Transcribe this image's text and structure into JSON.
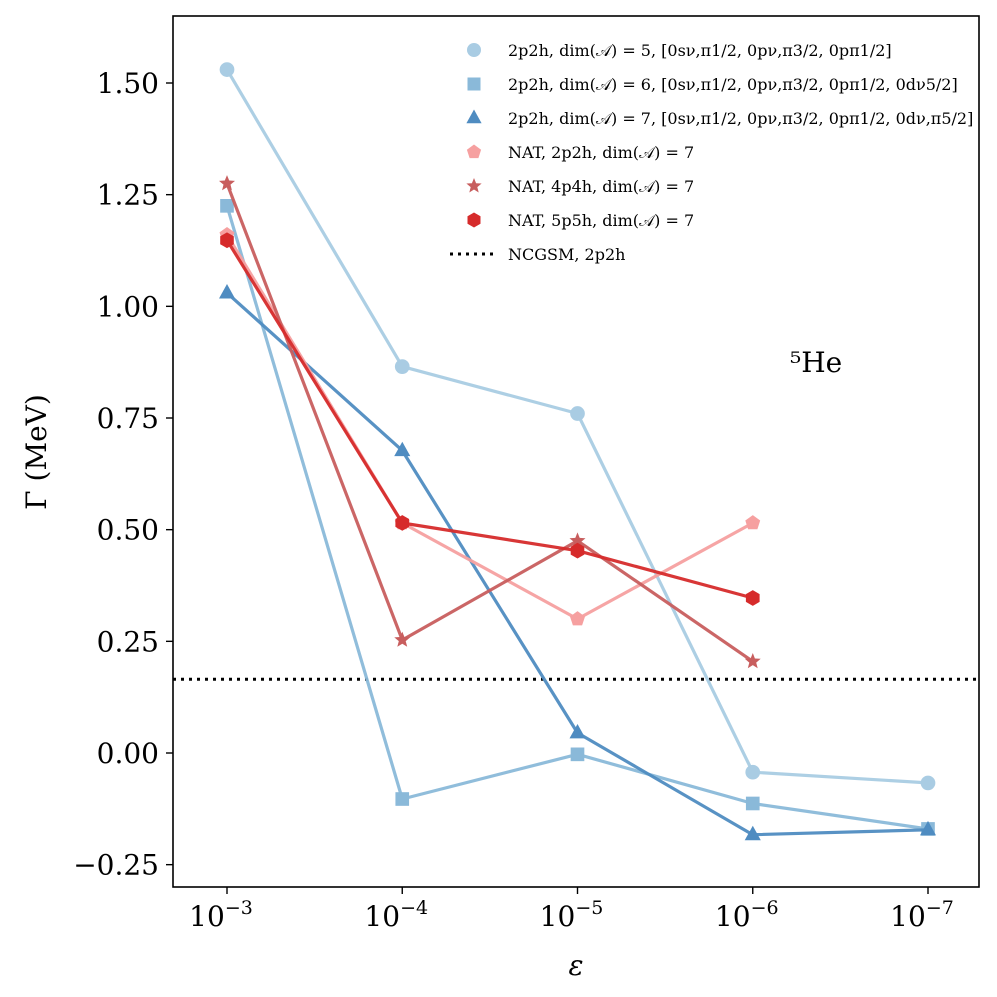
{
  "chart_data": {
    "type": "line",
    "xlabel": "ε",
    "ylabel": "Γ (MeV)",
    "x_scale": "log",
    "x_ticks": [
      {
        "base": "10",
        "exp": "−3",
        "value": 0.001
      },
      {
        "base": "10",
        "exp": "−4",
        "value": 0.0001
      },
      {
        "base": "10",
        "exp": "−5",
        "value": 1e-05
      },
      {
        "base": "10",
        "exp": "−6",
        "value": 1e-06
      },
      {
        "base": "10",
        "exp": "−7",
        "value": 1e-07
      }
    ],
    "y_ticks": [
      "−0.25",
      "0.00",
      "0.25",
      "0.50",
      "0.75",
      "1.00",
      "1.25",
      "1.50"
    ],
    "y_tick_values": [
      -0.25,
      0.0,
      0.25,
      0.5,
      0.75,
      1.0,
      1.25,
      1.5
    ],
    "ylim": [
      -0.3,
      1.65
    ],
    "legend_position": "upper-right",
    "annotation": "⁵He",
    "hline": {
      "name": "NCGSM, 2p2h",
      "y": 0.165,
      "style": "dotted",
      "color": "#000000"
    },
    "series": [
      {
        "name": "2p2h, dim(𝒜) = 5, [0s^{ν,π}_{1/2}, 0p^{ν,π}_{3/2}, 0p^{π}_{1/2}]",
        "legend_label": "2p2h, dim(𝒜) = 5, [0sν,π1/2, 0pν,π3/2, 0pπ1/2]",
        "marker": "circle",
        "color": "#a9cce3",
        "x": [
          0.001,
          0.0001,
          1e-05,
          1e-06,
          1e-07
        ],
        "values": [
          1.53,
          0.865,
          0.76,
          -0.043,
          -0.067
        ]
      },
      {
        "name": "2p2h, dim(𝒜) = 6, [0s^{ν,π}_{1/2}, 0p^{ν,π}_{3/2}, 0p^{π}_{1/2}, 0d^{ν}_{5/2}]",
        "legend_label": "2p2h, dim(𝒜) = 6, [0sν,π1/2, 0pν,π3/2, 0pπ1/2, 0dν5/2]",
        "marker": "square",
        "color": "#8ab9d9",
        "x": [
          0.001,
          0.0001,
          1e-05,
          1e-06,
          1e-07
        ],
        "values": [
          1.225,
          -0.103,
          -0.003,
          -0.113,
          -0.17
        ]
      },
      {
        "name": "2p2h, dim(𝒜) = 7, [0s^{ν,π}_{1/2}, 0p^{ν,π}_{3/2}, 0p^{π}_{1/2}, 0d^{ν,π}_{5/2}]",
        "legend_label": "2p2h, dim(𝒜) = 7, [0sν,π1/2, 0pν,π3/2, 0pπ1/2, 0dν,π5/2]",
        "marker": "triangle",
        "color": "#4f8cc1",
        "x": [
          0.001,
          0.0001,
          1e-05,
          1e-06,
          1e-07
        ],
        "values": [
          1.03,
          0.677,
          0.045,
          -0.183,
          -0.172
        ]
      },
      {
        "name": "NAT, 2p2h, dim(𝒜) = 7",
        "legend_label": "NAT, 2p2h, dim(𝒜) = 7",
        "marker": "pentagon",
        "color": "#f6a0a0",
        "x": [
          0.001,
          0.0001,
          1e-05,
          1e-06
        ],
        "values": [
          1.16,
          0.515,
          0.3,
          0.515
        ]
      },
      {
        "name": "NAT, 4p4h, dim(𝒜) = 7",
        "legend_label": "NAT, 4p4h, dim(𝒜) = 7",
        "marker": "star",
        "color": "#c85e5e",
        "x": [
          0.001,
          0.0001,
          1e-05,
          1e-06
        ],
        "values": [
          1.275,
          0.253,
          0.475,
          0.205
        ]
      },
      {
        "name": "NAT, 5p5h, dim(𝒜) = 7",
        "legend_label": "NAT, 5p5h, dim(𝒜) = 7",
        "marker": "hexagon",
        "color": "#d62b2b",
        "x": [
          0.001,
          0.0001,
          1e-05,
          1e-06
        ],
        "values": [
          1.148,
          0.515,
          0.453,
          0.347
        ]
      }
    ]
  }
}
